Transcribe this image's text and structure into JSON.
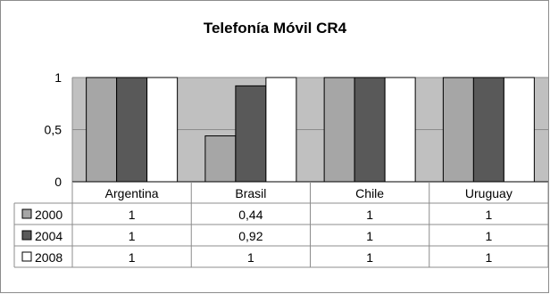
{
  "chart_data": {
    "type": "bar",
    "title": "Telefonía Móvil CR4",
    "categories": [
      "Argentina",
      "Brasil",
      "Chile",
      "Uruguay"
    ],
    "series": [
      {
        "name": "2000",
        "values": [
          1,
          0.44,
          1,
          1
        ],
        "color": "#a6a6a6",
        "labels": [
          "1",
          "0,44",
          "1",
          "1"
        ]
      },
      {
        "name": "2004",
        "values": [
          1,
          0.92,
          1,
          1
        ],
        "color": "#595959",
        "labels": [
          "1",
          "0,92",
          "1",
          "1"
        ]
      },
      {
        "name": "2008",
        "values": [
          1,
          1,
          1,
          1
        ],
        "color": "#ffffff",
        "labels": [
          "1",
          "1",
          "1",
          "1"
        ]
      }
    ],
    "ylim": [
      0,
      1
    ],
    "yticks": [
      0,
      0.5,
      1
    ],
    "ytick_labels": [
      "0",
      "0,5",
      "1"
    ],
    "grid": true,
    "legend": "data-table"
  }
}
